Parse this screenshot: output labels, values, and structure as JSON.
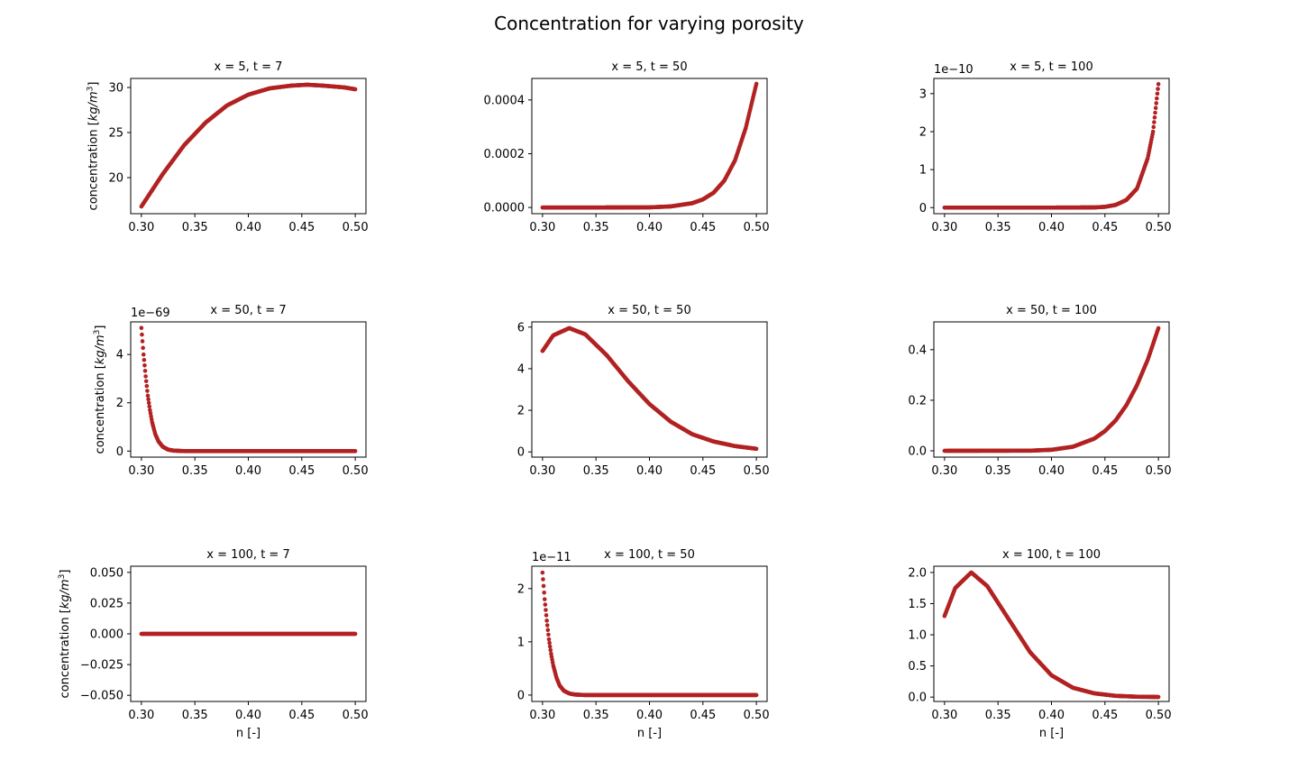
{
  "figure": {
    "title": "Concentration for varying porosity",
    "xlabel": "n [-]",
    "ylabel_prefix": "concentration [",
    "ylabel_math": "kg/m",
    "ylabel_sup": "3",
    "ylabel_suffix": "]",
    "marker_color": "#b22222"
  },
  "chart_data": [
    {
      "type": "scatter",
      "title": "x = 5, t = 7",
      "x_range": [
        0.3,
        0.5
      ],
      "n_points": 400,
      "xticks": [
        0.3,
        0.35,
        0.4,
        0.45,
        0.5
      ],
      "xtick_labels": [
        "0.30",
        "0.35",
        "0.40",
        "0.45",
        "0.50"
      ],
      "ylim": [
        16.0,
        31.0
      ],
      "yticks": [
        20,
        25,
        30
      ],
      "ytick_labels": [
        "20",
        "25",
        "30"
      ],
      "offset_label": "",
      "curve": {
        "x": [
          0.3,
          0.32,
          0.34,
          0.36,
          0.38,
          0.4,
          0.42,
          0.44,
          0.455,
          0.47,
          0.49,
          0.5
        ],
        "y": [
          16.8,
          20.4,
          23.6,
          26.1,
          28.0,
          29.2,
          29.9,
          30.2,
          30.3,
          30.2,
          30.0,
          29.8
        ]
      },
      "show_ylabel": true,
      "show_xlabel": false
    },
    {
      "type": "scatter",
      "title": "x = 5, t = 50",
      "x_range": [
        0.3,
        0.5
      ],
      "n_points": 400,
      "xticks": [
        0.3,
        0.35,
        0.4,
        0.45,
        0.5
      ],
      "xtick_labels": [
        "0.30",
        "0.35",
        "0.40",
        "0.45",
        "0.50"
      ],
      "ylim": [
        -2.3e-05,
        0.00048
      ],
      "yticks": [
        0.0,
        0.0002,
        0.0004
      ],
      "ytick_labels": [
        "0.0000",
        "0.0002",
        "0.0004"
      ],
      "offset_label": "",
      "curve": {
        "x": [
          0.3,
          0.35,
          0.4,
          0.42,
          0.44,
          0.45,
          0.46,
          0.47,
          0.48,
          0.49,
          0.5
        ],
        "y": [
          0.0,
          0.0,
          5e-07,
          4e-06,
          1.6e-05,
          3e-05,
          5.5e-05,
          0.0001,
          0.000175,
          0.000295,
          0.00046
        ]
      },
      "show_ylabel": false,
      "show_xlabel": false
    },
    {
      "type": "scatter",
      "title": "x = 5, t = 100",
      "x_range": [
        0.3,
        0.5
      ],
      "n_points": 400,
      "xticks": [
        0.3,
        0.35,
        0.4,
        0.45,
        0.5
      ],
      "xtick_labels": [
        "0.30",
        "0.35",
        "0.40",
        "0.45",
        "0.50"
      ],
      "ylim": [
        -0.16,
        3.4
      ],
      "yticks": [
        0,
        1,
        2,
        3
      ],
      "ytick_labels": [
        "0",
        "1",
        "2",
        "3"
      ],
      "offset_label": "1e−10",
      "curve": {
        "x": [
          0.3,
          0.4,
          0.44,
          0.45,
          0.46,
          0.47,
          0.48,
          0.49,
          0.495,
          0.5
        ],
        "y": [
          0.0,
          0.0,
          0.005,
          0.02,
          0.07,
          0.2,
          0.5,
          1.3,
          2.0,
          3.25
        ]
      },
      "show_ylabel": false,
      "show_xlabel": false
    },
    {
      "type": "scatter",
      "title": "x = 50, t = 7",
      "x_range": [
        0.3,
        0.5
      ],
      "n_points": 400,
      "xticks": [
        0.3,
        0.35,
        0.4,
        0.45,
        0.5
      ],
      "xtick_labels": [
        "0.30",
        "0.35",
        "0.40",
        "0.45",
        "0.50"
      ],
      "ylim": [
        -0.25,
        5.35
      ],
      "yticks": [
        0,
        2,
        4
      ],
      "ytick_labels": [
        "0",
        "2",
        "4"
      ],
      "offset_label": "1e−69",
      "curve": {
        "x": [
          0.3,
          0.302,
          0.304,
          0.306,
          0.308,
          0.31,
          0.313,
          0.316,
          0.32,
          0.325,
          0.33,
          0.34,
          0.5
        ],
        "y": [
          5.1,
          4.0,
          3.1,
          2.3,
          1.7,
          1.2,
          0.7,
          0.4,
          0.18,
          0.06,
          0.02,
          0.0,
          0.0
        ]
      },
      "show_ylabel": true,
      "show_xlabel": false
    },
    {
      "type": "scatter",
      "title": "x = 50, t = 50",
      "x_range": [
        0.3,
        0.5
      ],
      "n_points": 400,
      "xticks": [
        0.3,
        0.35,
        0.4,
        0.45,
        0.5
      ],
      "xtick_labels": [
        "0.30",
        "0.35",
        "0.40",
        "0.45",
        "0.50"
      ],
      "ylim": [
        -0.25,
        6.25
      ],
      "yticks": [
        0,
        2,
        4,
        6
      ],
      "ytick_labels": [
        "0",
        "2",
        "4",
        "6"
      ],
      "offset_label": "",
      "curve": {
        "x": [
          0.3,
          0.31,
          0.325,
          0.34,
          0.36,
          0.38,
          0.4,
          0.42,
          0.44,
          0.46,
          0.48,
          0.5
        ],
        "y": [
          4.85,
          5.6,
          5.95,
          5.65,
          4.65,
          3.4,
          2.3,
          1.45,
          0.85,
          0.5,
          0.28,
          0.15
        ]
      },
      "show_ylabel": false,
      "show_xlabel": false
    },
    {
      "type": "scatter",
      "title": "x = 50, t = 100",
      "x_range": [
        0.3,
        0.5
      ],
      "n_points": 400,
      "xticks": [
        0.3,
        0.35,
        0.4,
        0.45,
        0.5
      ],
      "xtick_labels": [
        "0.30",
        "0.35",
        "0.40",
        "0.45",
        "0.50"
      ],
      "ylim": [
        -0.025,
        0.51
      ],
      "yticks": [
        0.0,
        0.2,
        0.4
      ],
      "ytick_labels": [
        "0.0",
        "0.2",
        "0.4"
      ],
      "offset_label": "",
      "curve": {
        "x": [
          0.3,
          0.38,
          0.4,
          0.42,
          0.44,
          0.45,
          0.46,
          0.47,
          0.48,
          0.49,
          0.5
        ],
        "y": [
          0.0,
          0.0005,
          0.004,
          0.016,
          0.048,
          0.078,
          0.12,
          0.18,
          0.26,
          0.36,
          0.485
        ]
      },
      "show_ylabel": false,
      "show_xlabel": false
    },
    {
      "type": "scatter",
      "title": "x = 100, t = 7",
      "x_range": [
        0.3,
        0.5
      ],
      "n_points": 400,
      "xticks": [
        0.3,
        0.35,
        0.4,
        0.45,
        0.5
      ],
      "xtick_labels": [
        "0.30",
        "0.35",
        "0.40",
        "0.45",
        "0.50"
      ],
      "ylim": [
        -0.055,
        0.055
      ],
      "yticks": [
        -0.05,
        -0.025,
        0.0,
        0.025,
        0.05
      ],
      "ytick_labels": [
        "−0.050",
        "−0.025",
        "0.000",
        "0.025",
        "0.050"
      ],
      "offset_label": "",
      "curve": {
        "x": [
          0.3,
          0.5
        ],
        "y": [
          0.0,
          0.0
        ]
      },
      "show_ylabel": true,
      "show_xlabel": true
    },
    {
      "type": "scatter",
      "title": "x = 100, t = 50",
      "x_range": [
        0.3,
        0.5
      ],
      "n_points": 400,
      "xticks": [
        0.3,
        0.35,
        0.4,
        0.45,
        0.5
      ],
      "xtick_labels": [
        "0.30",
        "0.35",
        "0.40",
        "0.45",
        "0.50"
      ],
      "ylim": [
        -0.12,
        2.42
      ],
      "yticks": [
        0,
        1,
        2
      ],
      "ytick_labels": [
        "0",
        "1",
        "2"
      ],
      "offset_label": "1e−11",
      "curve": {
        "x": [
          0.3,
          0.302,
          0.304,
          0.306,
          0.308,
          0.31,
          0.313,
          0.316,
          0.32,
          0.325,
          0.33,
          0.34,
          0.5
        ],
        "y": [
          2.3,
          1.8,
          1.4,
          1.05,
          0.78,
          0.56,
          0.33,
          0.18,
          0.08,
          0.03,
          0.01,
          0.0,
          0.0
        ]
      },
      "show_ylabel": false,
      "show_xlabel": true
    },
    {
      "type": "scatter",
      "title": "x = 100, t = 100",
      "x_range": [
        0.3,
        0.5
      ],
      "n_points": 400,
      "xticks": [
        0.3,
        0.35,
        0.4,
        0.45,
        0.5
      ],
      "xtick_labels": [
        "0.30",
        "0.35",
        "0.40",
        "0.45",
        "0.50"
      ],
      "ylim": [
        -0.07,
        2.1
      ],
      "yticks": [
        0.0,
        0.5,
        1.0,
        1.5,
        2.0
      ],
      "ytick_labels": [
        "0.0",
        "0.5",
        "1.0",
        "1.5",
        "2.0"
      ],
      "offset_label": "",
      "curve": {
        "x": [
          0.3,
          0.31,
          0.325,
          0.34,
          0.36,
          0.38,
          0.4,
          0.42,
          0.44,
          0.46,
          0.48,
          0.5
        ],
        "y": [
          1.3,
          1.75,
          2.0,
          1.78,
          1.25,
          0.72,
          0.35,
          0.15,
          0.06,
          0.02,
          0.006,
          0.002
        ]
      },
      "show_ylabel": false,
      "show_xlabel": true
    }
  ]
}
